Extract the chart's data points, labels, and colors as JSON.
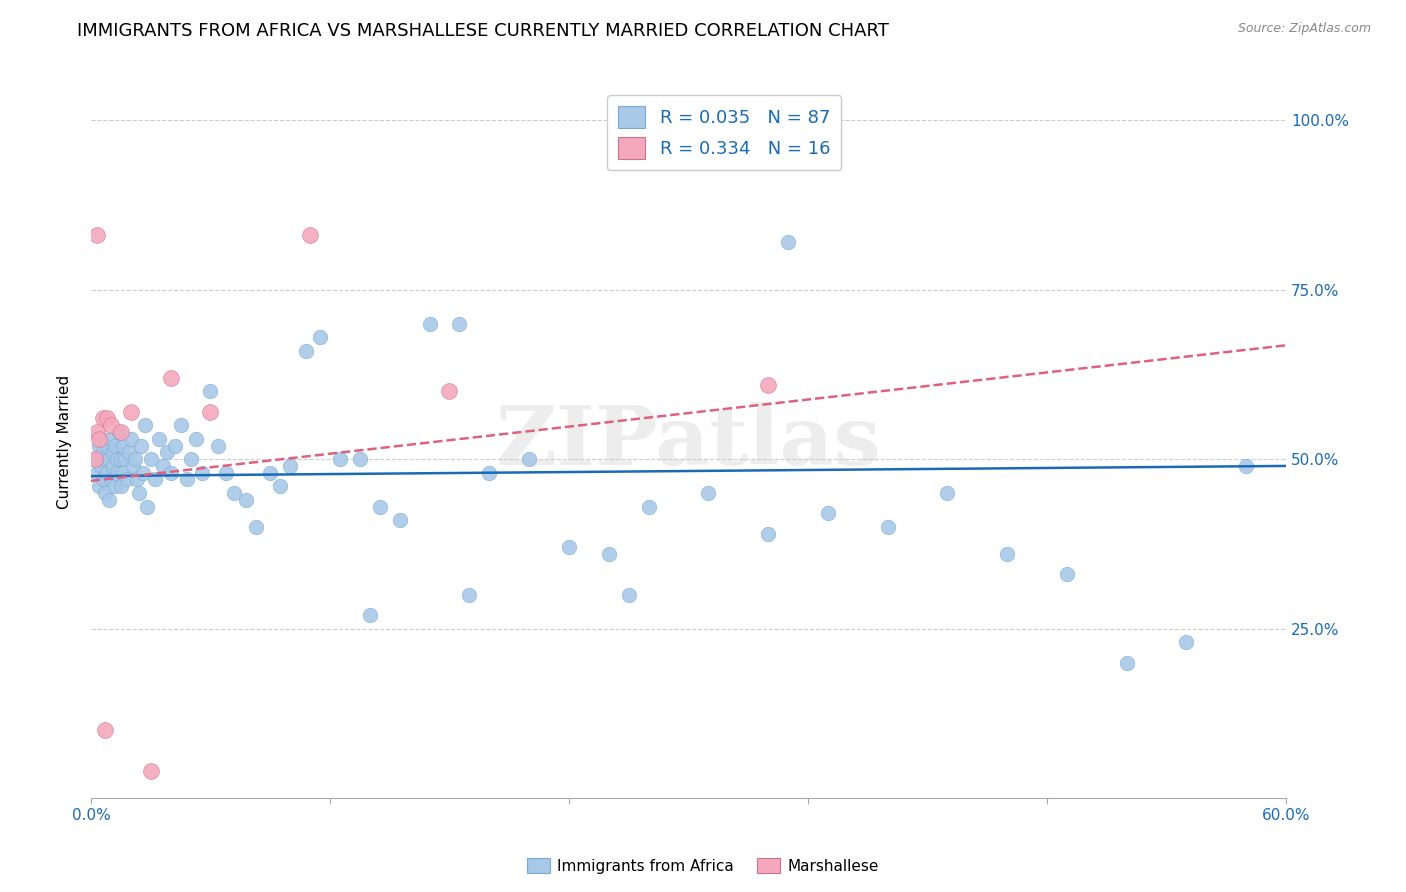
{
  "title": "IMMIGRANTS FROM AFRICA VS MARSHALLESE CURRENTLY MARRIED CORRELATION CHART",
  "source": "Source: ZipAtlas.com",
  "ylabel": "Currently Married",
  "xlim": [
    0.0,
    0.6
  ],
  "ylim": [
    0.0,
    1.05
  ],
  "xtick_positions": [
    0.0,
    0.12,
    0.24,
    0.36,
    0.48,
    0.6
  ],
  "xticklabels": [
    "0.0%",
    "",
    "",
    "",
    "",
    "60.0%"
  ],
  "ytick_positions": [
    0.0,
    0.25,
    0.5,
    0.75,
    1.0
  ],
  "yticklabels": [
    "",
    "25.0%",
    "50.0%",
    "75.0%",
    "100.0%"
  ],
  "color_africa": "#a8c8e8",
  "color_marshallese": "#f4a8bc",
  "trendline_color_africa": "#1a6bb5",
  "trendline_color_marshallese": "#e06080",
  "watermark": "ZIPatlas",
  "title_fontsize": 13,
  "label_fontsize": 11,
  "tick_fontsize": 11,
  "africa_x": [
    0.002,
    0.003,
    0.004,
    0.004,
    0.005,
    0.005,
    0.006,
    0.006,
    0.007,
    0.007,
    0.008,
    0.008,
    0.009,
    0.009,
    0.01,
    0.01,
    0.011,
    0.011,
    0.012,
    0.012,
    0.013,
    0.013,
    0.014,
    0.015,
    0.015,
    0.016,
    0.016,
    0.017,
    0.018,
    0.019,
    0.02,
    0.021,
    0.022,
    0.023,
    0.024,
    0.025,
    0.026,
    0.027,
    0.028,
    0.03,
    0.032,
    0.034,
    0.036,
    0.038,
    0.04,
    0.042,
    0.045,
    0.048,
    0.05,
    0.053,
    0.056,
    0.06,
    0.064,
    0.068,
    0.072,
    0.078,
    0.083,
    0.09,
    0.095,
    0.1,
    0.108,
    0.115,
    0.125,
    0.135,
    0.145,
    0.155,
    0.17,
    0.185,
    0.2,
    0.22,
    0.24,
    0.26,
    0.28,
    0.31,
    0.34,
    0.37,
    0.4,
    0.43,
    0.46,
    0.49,
    0.52,
    0.55,
    0.35,
    0.27,
    0.19,
    0.14,
    0.58
  ],
  "africa_y": [
    0.5,
    0.48,
    0.52,
    0.46,
    0.53,
    0.49,
    0.51,
    0.47,
    0.5,
    0.45,
    0.52,
    0.48,
    0.5,
    0.44,
    0.53,
    0.47,
    0.51,
    0.49,
    0.52,
    0.46,
    0.5,
    0.48,
    0.54,
    0.5,
    0.46,
    0.52,
    0.48,
    0.5,
    0.47,
    0.51,
    0.53,
    0.49,
    0.5,
    0.47,
    0.45,
    0.52,
    0.48,
    0.55,
    0.43,
    0.5,
    0.47,
    0.53,
    0.49,
    0.51,
    0.48,
    0.52,
    0.55,
    0.47,
    0.5,
    0.53,
    0.48,
    0.6,
    0.52,
    0.48,
    0.45,
    0.44,
    0.4,
    0.48,
    0.46,
    0.49,
    0.66,
    0.68,
    0.5,
    0.5,
    0.43,
    0.41,
    0.7,
    0.7,
    0.48,
    0.5,
    0.37,
    0.36,
    0.43,
    0.45,
    0.39,
    0.42,
    0.4,
    0.45,
    0.36,
    0.33,
    0.2,
    0.23,
    0.82,
    0.3,
    0.3,
    0.27,
    0.49
  ],
  "marshallese_x": [
    0.002,
    0.003,
    0.004,
    0.006,
    0.008,
    0.01,
    0.015,
    0.02,
    0.03,
    0.04,
    0.06,
    0.11,
    0.18,
    0.34,
    0.003,
    0.007
  ],
  "marshallese_y": [
    0.5,
    0.54,
    0.53,
    0.56,
    0.56,
    0.55,
    0.54,
    0.57,
    0.04,
    0.62,
    0.57,
    0.83,
    0.6,
    0.61,
    0.83,
    0.1
  ],
  "africa_trend_x": [
    0.0,
    0.6
  ],
  "africa_trend_y": [
    0.475,
    0.49
  ],
  "marsh_trend_x": [
    0.0,
    0.6
  ],
  "marsh_trend_y": [
    0.468,
    0.668
  ]
}
